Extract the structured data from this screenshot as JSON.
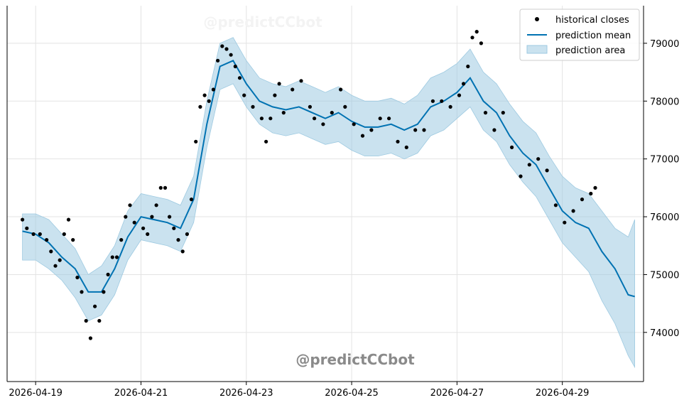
{
  "chart_data": {
    "type": "line",
    "title": "",
    "xlabel": "",
    "ylabel": "",
    "x_ticks": [
      "2026-04-19",
      "2026-04-21",
      "2026-04-23",
      "2026-04-25",
      "2026-04-27",
      "2026-04-29"
    ],
    "y_ticks": [
      74000,
      75000,
      76000,
      77000,
      78000,
      79000
    ],
    "xlim": [
      "2026-04-18T11:00",
      "2026-04-30T13:00"
    ],
    "ylim": [
      73150,
      79650
    ],
    "y_axis_position": "right",
    "grid": true,
    "legend_position": "top-right",
    "legend": [
      "historical closes",
      "prediction mean",
      "prediction area"
    ],
    "colors": {
      "points": "#000000",
      "mean": "#0072B2",
      "band": "#9ECAE1"
    },
    "series": [
      {
        "name": "historical closes",
        "kind": "scatter",
        "points": [
          [
            "2026-04-18T18:00",
            75950
          ],
          [
            "2026-04-18T20:00",
            75800
          ],
          [
            "2026-04-18T23:00",
            75700
          ],
          [
            "2026-04-19T02:00",
            75700
          ],
          [
            "2026-04-19T05:00",
            75600
          ],
          [
            "2026-04-19T07:00",
            75400
          ],
          [
            "2026-04-19T09:00",
            75150
          ],
          [
            "2026-04-19T11:00",
            75250
          ],
          [
            "2026-04-19T13:00",
            75700
          ],
          [
            "2026-04-19T15:00",
            75950
          ],
          [
            "2026-04-19T17:00",
            75600
          ],
          [
            "2026-04-19T19:00",
            74950
          ],
          [
            "2026-04-19T21:00",
            74700
          ],
          [
            "2026-04-19T23:00",
            74200
          ],
          [
            "2026-04-20T01:00",
            73900
          ],
          [
            "2026-04-20T03:00",
            74450
          ],
          [
            "2026-04-20T05:00",
            74200
          ],
          [
            "2026-04-20T07:00",
            74700
          ],
          [
            "2026-04-20T09:00",
            75000
          ],
          [
            "2026-04-20T11:00",
            75300
          ],
          [
            "2026-04-20T13:00",
            75300
          ],
          [
            "2026-04-20T15:00",
            75600
          ],
          [
            "2026-04-20T17:00",
            76000
          ],
          [
            "2026-04-20T19:00",
            76200
          ],
          [
            "2026-04-20T21:00",
            75900
          ],
          [
            "2026-04-21T01:00",
            75800
          ],
          [
            "2026-04-21T03:00",
            75700
          ],
          [
            "2026-04-21T05:00",
            76000
          ],
          [
            "2026-04-21T07:00",
            76200
          ],
          [
            "2026-04-21T09:00",
            76500
          ],
          [
            "2026-04-21T11:00",
            76500
          ],
          [
            "2026-04-21T13:00",
            76000
          ],
          [
            "2026-04-21T15:00",
            75800
          ],
          [
            "2026-04-21T17:00",
            75600
          ],
          [
            "2026-04-21T19:00",
            75400
          ],
          [
            "2026-04-21T21:00",
            75700
          ],
          [
            "2026-04-21T23:00",
            76300
          ],
          [
            "2026-04-22T01:00",
            77300
          ],
          [
            "2026-04-22T03:00",
            77900
          ],
          [
            "2026-04-22T05:00",
            78100
          ],
          [
            "2026-04-22T07:00",
            78000
          ],
          [
            "2026-04-22T09:00",
            78200
          ],
          [
            "2026-04-22T11:00",
            78700
          ],
          [
            "2026-04-22T13:00",
            78950
          ],
          [
            "2026-04-22T15:00",
            78900
          ],
          [
            "2026-04-22T17:00",
            78800
          ],
          [
            "2026-04-22T19:00",
            78600
          ],
          [
            "2026-04-22T21:00",
            78400
          ],
          [
            "2026-04-22T23:00",
            78100
          ],
          [
            "2026-04-23T03:00",
            77900
          ],
          [
            "2026-04-23T07:00",
            77700
          ],
          [
            "2026-04-23T09:00",
            77300
          ],
          [
            "2026-04-23T11:00",
            77700
          ],
          [
            "2026-04-23T13:00",
            78100
          ],
          [
            "2026-04-23T15:00",
            78300
          ],
          [
            "2026-04-23T17:00",
            77800
          ],
          [
            "2026-04-23T21:00",
            78200
          ],
          [
            "2026-04-24T01:00",
            78350
          ],
          [
            "2026-04-24T05:00",
            77900
          ],
          [
            "2026-04-24T07:00",
            77700
          ],
          [
            "2026-04-24T11:00",
            77600
          ],
          [
            "2026-04-24T15:00",
            77800
          ],
          [
            "2026-04-24T19:00",
            78200
          ],
          [
            "2026-04-24T21:00",
            77900
          ],
          [
            "2026-04-25T01:00",
            77600
          ],
          [
            "2026-04-25T05:00",
            77400
          ],
          [
            "2026-04-25T09:00",
            77500
          ],
          [
            "2026-04-25T13:00",
            77700
          ],
          [
            "2026-04-25T17:00",
            77700
          ],
          [
            "2026-04-25T21:00",
            77300
          ],
          [
            "2026-04-26T01:00",
            77200
          ],
          [
            "2026-04-26T05:00",
            77500
          ],
          [
            "2026-04-26T09:00",
            77500
          ],
          [
            "2026-04-26T13:00",
            78000
          ],
          [
            "2026-04-26T17:00",
            78000
          ],
          [
            "2026-04-26T21:00",
            77900
          ],
          [
            "2026-04-27T01:00",
            78100
          ],
          [
            "2026-04-27T03:00",
            78300
          ],
          [
            "2026-04-27T05:00",
            78600
          ],
          [
            "2026-04-27T07:00",
            79100
          ],
          [
            "2026-04-27T09:00",
            79200
          ],
          [
            "2026-04-27T11:00",
            79000
          ],
          [
            "2026-04-27T13:00",
            77800
          ],
          [
            "2026-04-27T17:00",
            77500
          ],
          [
            "2026-04-27T21:00",
            77800
          ],
          [
            "2026-04-28T01:00",
            77200
          ],
          [
            "2026-04-28T05:00",
            76700
          ],
          [
            "2026-04-28T09:00",
            76900
          ],
          [
            "2026-04-28T13:00",
            77000
          ],
          [
            "2026-04-28T17:00",
            76800
          ],
          [
            "2026-04-28T21:00",
            76200
          ],
          [
            "2026-04-29T01:00",
            75900
          ],
          [
            "2026-04-29T05:00",
            76100
          ],
          [
            "2026-04-29T09:00",
            76300
          ],
          [
            "2026-04-29T13:00",
            76400
          ],
          [
            "2026-04-29T15:00",
            76500
          ]
        ]
      },
      {
        "name": "prediction mean",
        "kind": "line",
        "points": [
          [
            "2026-04-18T18:00",
            75750
          ],
          [
            "2026-04-19T00:00",
            75700
          ],
          [
            "2026-04-19T06:00",
            75550
          ],
          [
            "2026-04-19T12:00",
            75300
          ],
          [
            "2026-04-19T18:00",
            75100
          ],
          [
            "2026-04-20T00:00",
            74700
          ],
          [
            "2026-04-20T06:00",
            74700
          ],
          [
            "2026-04-20T12:00",
            75100
          ],
          [
            "2026-04-20T18:00",
            75650
          ],
          [
            "2026-04-21T00:00",
            76000
          ],
          [
            "2026-04-21T06:00",
            75950
          ],
          [
            "2026-04-21T12:00",
            75900
          ],
          [
            "2026-04-21T18:00",
            75800
          ],
          [
            "2026-04-22T00:00",
            76300
          ],
          [
            "2026-04-22T06:00",
            77600
          ],
          [
            "2026-04-22T12:00",
            78600
          ],
          [
            "2026-04-22T18:00",
            78700
          ],
          [
            "2026-04-23T00:00",
            78300
          ],
          [
            "2026-04-23T06:00",
            78000
          ],
          [
            "2026-04-23T12:00",
            77900
          ],
          [
            "2026-04-23T18:00",
            77850
          ],
          [
            "2026-04-24T00:00",
            77900
          ],
          [
            "2026-04-24T06:00",
            77800
          ],
          [
            "2026-04-24T12:00",
            77700
          ],
          [
            "2026-04-24T18:00",
            77800
          ],
          [
            "2026-04-25T00:00",
            77650
          ],
          [
            "2026-04-25T06:00",
            77550
          ],
          [
            "2026-04-25T12:00",
            77550
          ],
          [
            "2026-04-25T18:00",
            77600
          ],
          [
            "2026-04-26T00:00",
            77500
          ],
          [
            "2026-04-26T06:00",
            77600
          ],
          [
            "2026-04-26T12:00",
            77900
          ],
          [
            "2026-04-26T18:00",
            78000
          ],
          [
            "2026-04-27T00:00",
            78150
          ],
          [
            "2026-04-27T06:00",
            78400
          ],
          [
            "2026-04-27T12:00",
            78000
          ],
          [
            "2026-04-27T18:00",
            77800
          ],
          [
            "2026-04-28T00:00",
            77400
          ],
          [
            "2026-04-28T06:00",
            77100
          ],
          [
            "2026-04-28T12:00",
            76900
          ],
          [
            "2026-04-28T18:00",
            76500
          ],
          [
            "2026-04-29T00:00",
            76100
          ],
          [
            "2026-04-29T06:00",
            75900
          ],
          [
            "2026-04-29T12:00",
            75800
          ],
          [
            "2026-04-29T18:00",
            75400
          ],
          [
            "2026-04-30T00:00",
            75100
          ],
          [
            "2026-04-30T06:00",
            74650
          ],
          [
            "2026-04-30T09:00",
            74620
          ]
        ]
      },
      {
        "name": "prediction area",
        "kind": "band",
        "points": [
          [
            "2026-04-18T18:00",
            75250,
            76050
          ],
          [
            "2026-04-19T00:00",
            75250,
            76050
          ],
          [
            "2026-04-19T06:00",
            75100,
            75950
          ],
          [
            "2026-04-19T12:00",
            74900,
            75700
          ],
          [
            "2026-04-19T18:00",
            74600,
            75450
          ],
          [
            "2026-04-20T00:00",
            74200,
            75000
          ],
          [
            "2026-04-20T06:00",
            74300,
            75150
          ],
          [
            "2026-04-20T12:00",
            74650,
            75500
          ],
          [
            "2026-04-20T18:00",
            75250,
            76100
          ],
          [
            "2026-04-21T00:00",
            75600,
            76400
          ],
          [
            "2026-04-21T06:00",
            75550,
            76350
          ],
          [
            "2026-04-21T12:00",
            75500,
            76300
          ],
          [
            "2026-04-21T18:00",
            75400,
            76200
          ],
          [
            "2026-04-22T00:00",
            75900,
            76700
          ],
          [
            "2026-04-22T06:00",
            77200,
            78000
          ],
          [
            "2026-04-22T12:00",
            78200,
            79000
          ],
          [
            "2026-04-22T18:00",
            78300,
            79100
          ],
          [
            "2026-04-23T00:00",
            77900,
            78700
          ],
          [
            "2026-04-23T06:00",
            77600,
            78400
          ],
          [
            "2026-04-23T12:00",
            77450,
            78300
          ],
          [
            "2026-04-23T18:00",
            77400,
            78250
          ],
          [
            "2026-04-24T00:00",
            77450,
            78350
          ],
          [
            "2026-04-24T06:00",
            77350,
            78250
          ],
          [
            "2026-04-24T12:00",
            77250,
            78150
          ],
          [
            "2026-04-24T18:00",
            77300,
            78250
          ],
          [
            "2026-04-25T00:00",
            77150,
            78100
          ],
          [
            "2026-04-25T06:00",
            77050,
            78000
          ],
          [
            "2026-04-25T12:00",
            77050,
            78000
          ],
          [
            "2026-04-25T18:00",
            77100,
            78050
          ],
          [
            "2026-04-26T00:00",
            77000,
            77950
          ],
          [
            "2026-04-26T06:00",
            77100,
            78100
          ],
          [
            "2026-04-26T12:00",
            77400,
            78400
          ],
          [
            "2026-04-26T18:00",
            77500,
            78500
          ],
          [
            "2026-04-27T00:00",
            77700,
            78650
          ],
          [
            "2026-04-27T06:00",
            77900,
            78900
          ],
          [
            "2026-04-27T12:00",
            77500,
            78500
          ],
          [
            "2026-04-27T18:00",
            77300,
            78300
          ],
          [
            "2026-04-28T00:00",
            76900,
            77950
          ],
          [
            "2026-04-28T06:00",
            76600,
            77650
          ],
          [
            "2026-04-28T12:00",
            76350,
            77450
          ],
          [
            "2026-04-28T18:00",
            75950,
            77050
          ],
          [
            "2026-04-29T00:00",
            75550,
            76700
          ],
          [
            "2026-04-29T06:00",
            75300,
            76500
          ],
          [
            "2026-04-29T12:00",
            75050,
            76400
          ],
          [
            "2026-04-29T18:00",
            74550,
            76100
          ],
          [
            "2026-04-30T00:00",
            74150,
            75800
          ],
          [
            "2026-04-30T06:00",
            73600,
            75650
          ],
          [
            "2026-04-30T09:00",
            73400,
            75950
          ]
        ]
      }
    ]
  },
  "watermark": "@predictCCbot",
  "watermark_faint": "@predictCCbot"
}
